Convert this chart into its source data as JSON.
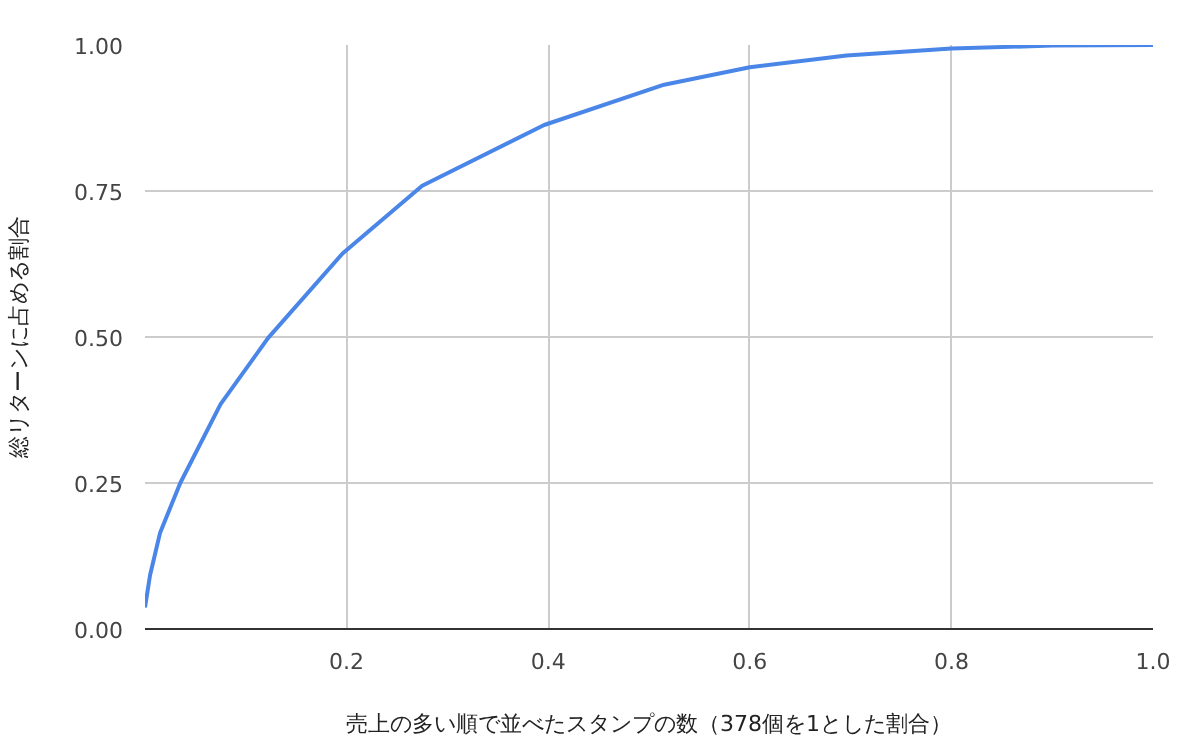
{
  "chart_data": {
    "type": "line",
    "xlabel": "売上の多い順で並べたスタンプの数（378個を1とした割合）",
    "ylabel": "総リターンに占める割合",
    "x": [
      0,
      0.005,
      0.015,
      0.035,
      0.075,
      0.122,
      0.196,
      0.275,
      0.396,
      0.515,
      0.6,
      0.696,
      0.8,
      0.9,
      1.0
    ],
    "series": [
      {
        "color": "#4a86e8",
        "values": [
          0.037,
          0.092,
          0.165,
          0.25,
          0.385,
          0.498,
          0.643,
          0.759,
          0.863,
          0.932,
          0.962,
          0.982,
          0.994,
          0.999,
          1.0
        ]
      }
    ],
    "xlim": [
      0,
      1.0
    ],
    "ylim": [
      0,
      1.0
    ],
    "xticks": [
      {
        "value": 0.2,
        "label": "0.2"
      },
      {
        "value": 0.4,
        "label": "0.4"
      },
      {
        "value": 0.6,
        "label": "0.6"
      },
      {
        "value": 0.8,
        "label": "0.8"
      },
      {
        "value": 1.0,
        "label": "1.0"
      }
    ],
    "yticks": [
      {
        "value": 0,
        "label": "0.00"
      },
      {
        "value": 0.25,
        "label": "0.25"
      },
      {
        "value": 0.5,
        "label": "0.50"
      },
      {
        "value": 0.75,
        "label": "0.75"
      },
      {
        "value": 1.0,
        "label": "1.00"
      }
    ],
    "grid": true
  }
}
